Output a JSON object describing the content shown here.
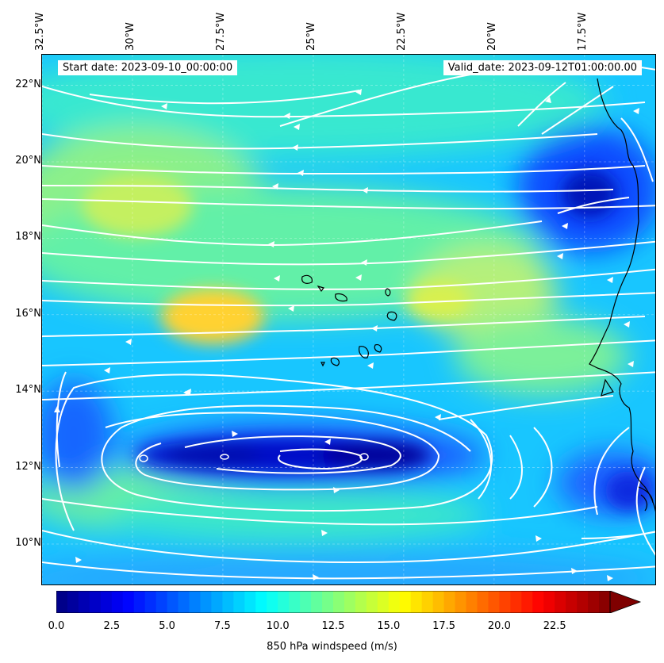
{
  "header": {
    "start_date": "Start date: 2023-09-10_00:00:00",
    "valid_date": "Valid_date: 2023-09-12T01:00:00.00"
  },
  "map": {
    "extent_lon": [
      -32.5,
      -15.5
    ],
    "extent_lat": [
      8.9,
      22.8
    ],
    "lon_ticks": [
      {
        "value": -32.5,
        "label": "32.5°W"
      },
      {
        "value": -30,
        "label": "30°W"
      },
      {
        "value": -27.5,
        "label": "27.5°W"
      },
      {
        "value": -25,
        "label": "25°W"
      },
      {
        "value": -22.5,
        "label": "22.5°W"
      },
      {
        "value": -20,
        "label": "20°W"
      },
      {
        "value": -17.5,
        "label": "17.5°W"
      }
    ],
    "lat_ticks": [
      {
        "value": 22,
        "label": "22°N"
      },
      {
        "value": 20,
        "label": "20°N"
      },
      {
        "value": 18,
        "label": "18°N"
      },
      {
        "value": 16,
        "label": "16°N"
      },
      {
        "value": 14,
        "label": "14°N"
      },
      {
        "value": 12,
        "label": "12°N"
      },
      {
        "value": 10,
        "label": "10°N"
      }
    ],
    "gridlines": true,
    "streamline_color": "#ffffff",
    "coastline_color": "#000000"
  },
  "colorbar": {
    "label": "850 hPa windspeed (m/s)",
    "ticks": [
      "0.0",
      "2.5",
      "5.0",
      "7.5",
      "10.0",
      "12.5",
      "15.0",
      "17.5",
      "20.0",
      "22.5"
    ],
    "tick_values": [
      0,
      2.5,
      5,
      7.5,
      10,
      12.5,
      15,
      17.5,
      20,
      22.5
    ],
    "range": [
      0,
      25
    ],
    "extend": "max",
    "colormap": "jet"
  }
}
